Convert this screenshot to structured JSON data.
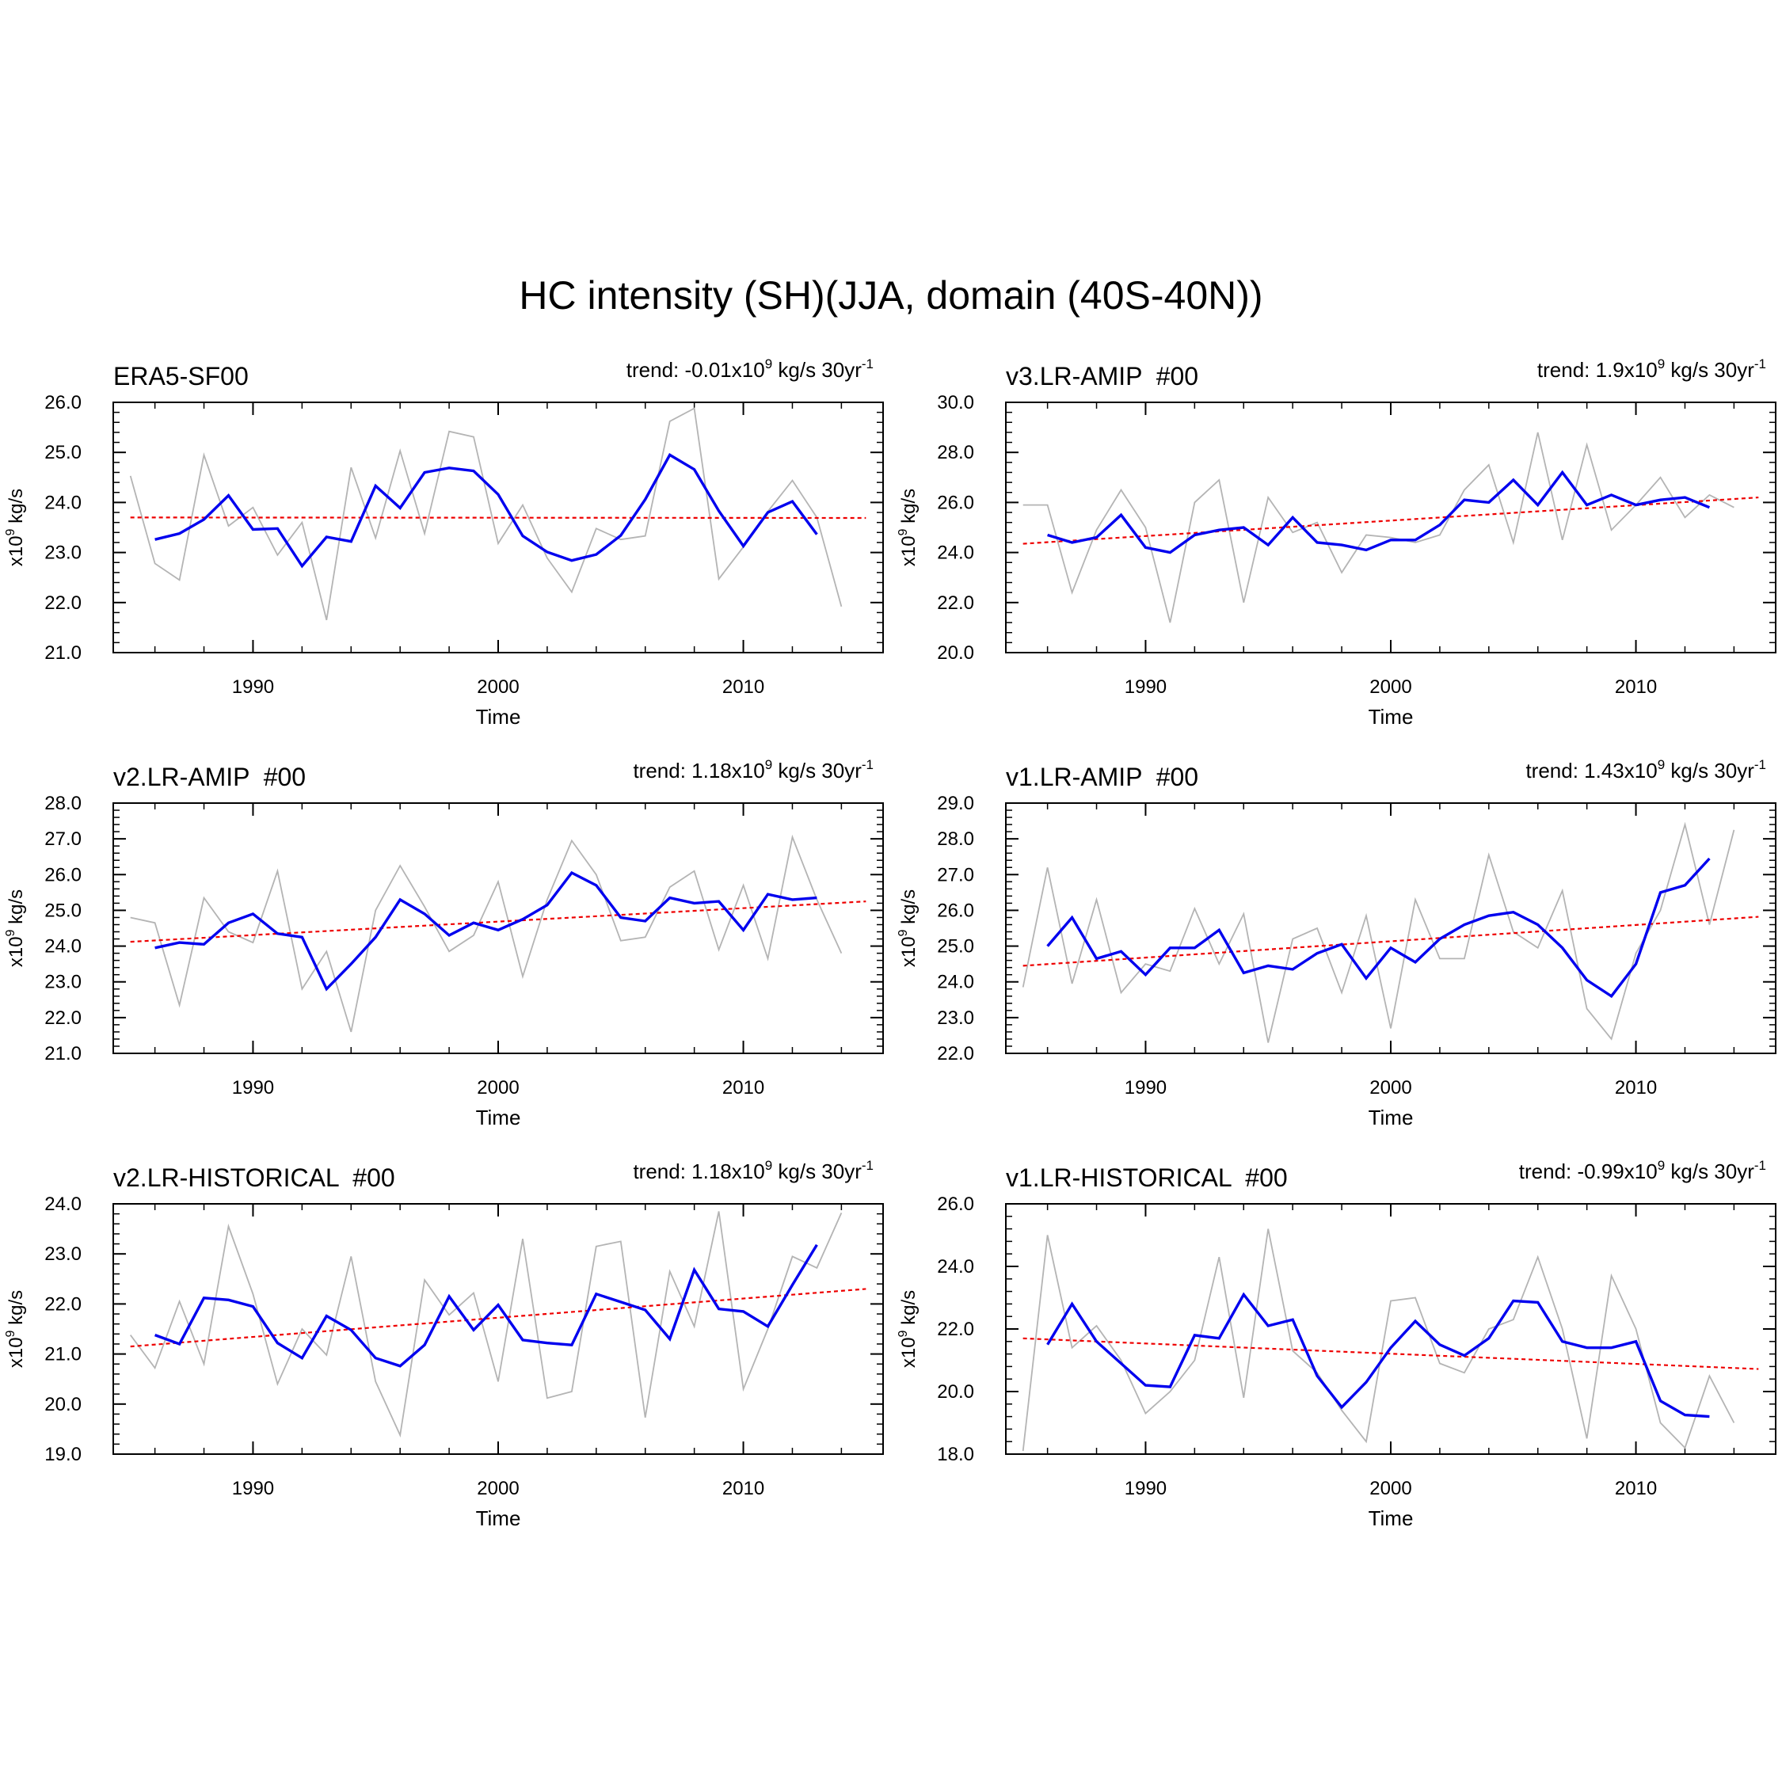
{
  "figure": {
    "title": "HC intensity (SH)(JJA, domain (40S-40N))"
  },
  "colors": {
    "raw": "#b4b4b4",
    "smooth": "#0000ee",
    "trend": "#ee0000",
    "axis": "#000000"
  },
  "chart_data": [
    {
      "type": "line",
      "name": "ERA5-SF00",
      "trend_label": {
        "prefix": "trend: ",
        "value": "-0.01x10",
        "sup1": "9",
        "mid": " kg/s 30yr",
        "sup2": "-1"
      },
      "xlabel": "Time",
      "ylabel": {
        "base": "x10",
        "sup": "9",
        "rest": " kg/s"
      },
      "xlim": [
        1984.3,
        2015.7
      ],
      "ylim": [
        21,
        26
      ],
      "yticks": [
        21,
        22,
        23,
        24,
        25,
        26
      ],
      "ytick_labels": [
        "21.0",
        "22.0",
        "23.0",
        "24.0",
        "25.0",
        "26.0"
      ],
      "xticks": [
        1990,
        2000,
        2010
      ],
      "xtick_labels": [
        "1990",
        "2000",
        "2010"
      ],
      "raw_x_start": 1985,
      "raw": [
        24.53,
        22.78,
        22.45,
        24.95,
        23.53,
        23.9,
        22.95,
        23.6,
        21.65,
        24.7,
        23.29,
        25.03,
        23.38,
        25.42,
        25.31,
        23.18,
        23.95,
        22.89,
        22.21,
        23.48,
        23.26,
        23.33,
        25.62,
        25.88,
        22.47,
        23.11,
        23.82,
        24.44,
        23.7,
        21.92
      ],
      "smooth_x_start": 1986,
      "smooth": [
        23.26,
        23.38,
        23.66,
        24.14,
        23.46,
        23.48,
        22.73,
        23.31,
        23.22,
        24.33,
        23.89,
        24.6,
        24.69,
        24.63,
        24.16,
        23.33,
        23.01,
        22.84,
        22.96,
        23.34,
        24.06,
        24.95,
        24.66,
        23.83,
        23.13,
        23.8,
        24.02,
        23.36
      ],
      "trend_line": {
        "x": [
          1985,
          2015
        ],
        "y": [
          23.7,
          23.69
        ]
      }
    },
    {
      "type": "line",
      "name": "v3.LR-AMIP  #00",
      "trend_label": {
        "prefix": "trend: ",
        "value": "1.9x10",
        "sup1": "9",
        "mid": " kg/s 30yr",
        "sup2": "-1"
      },
      "xlabel": "Time",
      "ylabel": {
        "base": "x10",
        "sup": "9",
        "rest": " kg/s"
      },
      "xlim": [
        1984.3,
        2015.7
      ],
      "ylim": [
        20,
        30
      ],
      "yticks": [
        20,
        22,
        24,
        26,
        28,
        30
      ],
      "ytick_labels": [
        "20.0",
        "22.0",
        "24.0",
        "26.0",
        "28.0",
        "30.0"
      ],
      "xticks": [
        1990,
        2000,
        2010
      ],
      "xtick_labels": [
        "1990",
        "2000",
        "2010"
      ],
      "raw_x_start": 1985,
      "raw": [
        25.9,
        25.9,
        22.4,
        24.9,
        26.5,
        25.0,
        21.2,
        26.0,
        26.9,
        22.0,
        26.2,
        24.8,
        25.2,
        23.2,
        24.7,
        24.6,
        24.4,
        24.7,
        26.5,
        27.5,
        24.4,
        28.8,
        24.5,
        28.3,
        24.9,
        25.9,
        27.0,
        25.4,
        26.3,
        25.8
      ],
      "smooth_x_start": 1986,
      "smooth": [
        24.7,
        24.4,
        24.6,
        25.5,
        24.2,
        24.0,
        24.7,
        24.9,
        25.0,
        24.3,
        25.4,
        24.4,
        24.3,
        24.1,
        24.5,
        24.5,
        25.1,
        26.1,
        26.0,
        26.9,
        25.9,
        27.2,
        25.9,
        26.3,
        25.9,
        26.1,
        26.2,
        25.8
      ],
      "trend_line": {
        "x": [
          1985,
          2015
        ],
        "y": [
          24.35,
          26.2
        ]
      }
    },
    {
      "type": "line",
      "name": "v2.LR-AMIP  #00",
      "trend_label": {
        "prefix": "trend: ",
        "value": "1.18x10",
        "sup1": "9",
        "mid": " kg/s 30yr",
        "sup2": "-1"
      },
      "xlabel": "Time",
      "ylabel": {
        "base": "x10",
        "sup": "9",
        "rest": " kg/s"
      },
      "xlim": [
        1984.3,
        2015.7
      ],
      "ylim": [
        21,
        28
      ],
      "yticks": [
        21,
        22,
        23,
        24,
        25,
        26,
        27,
        28
      ],
      "ytick_labels": [
        "21.0",
        "22.0",
        "23.0",
        "24.0",
        "25.0",
        "26.0",
        "27.0",
        "28.0"
      ],
      "xticks": [
        1990,
        2000,
        2010
      ],
      "xtick_labels": [
        "1990",
        "2000",
        "2010"
      ],
      "raw_x_start": 1985,
      "raw": [
        24.8,
        24.65,
        22.35,
        25.35,
        24.4,
        24.1,
        26.1,
        22.8,
        23.85,
        21.6,
        25.0,
        26.25,
        25.1,
        23.85,
        24.3,
        25.8,
        23.15,
        25.3,
        26.95,
        26.0,
        24.15,
        24.25,
        25.65,
        26.1,
        23.9,
        25.7,
        23.65,
        27.05,
        25.3,
        23.8
      ],
      "smooth_x_start": 1986,
      "smooth": [
        23.95,
        24.1,
        24.05,
        24.65,
        24.9,
        24.35,
        24.25,
        22.8,
        23.5,
        24.25,
        25.3,
        24.9,
        24.3,
        24.65,
        24.45,
        24.75,
        25.15,
        26.05,
        25.7,
        24.8,
        24.7,
        25.35,
        25.2,
        25.25,
        24.45,
        25.45,
        25.3,
        25.35
      ],
      "trend_line": {
        "x": [
          1985,
          2015
        ],
        "y": [
          24.12,
          25.25
        ]
      }
    },
    {
      "type": "line",
      "name": "v1.LR-AMIP  #00",
      "trend_label": {
        "prefix": "trend: ",
        "value": "1.43x10",
        "sup1": "9",
        "mid": " kg/s 30yr",
        "sup2": "-1"
      },
      "xlabel": "Time",
      "ylabel": {
        "base": "x10",
        "sup": "9",
        "rest": " kg/s"
      },
      "xlim": [
        1984.3,
        2015.7
      ],
      "ylim": [
        22,
        29
      ],
      "yticks": [
        22,
        23,
        24,
        25,
        26,
        27,
        28,
        29
      ],
      "ytick_labels": [
        "22.0",
        "23.0",
        "24.0",
        "25.0",
        "26.0",
        "27.0",
        "28.0",
        "29.0"
      ],
      "xticks": [
        1990,
        2000,
        2010
      ],
      "xtick_labels": [
        "1990",
        "2000",
        "2010"
      ],
      "raw_x_start": 1985,
      "raw": [
        23.85,
        27.2,
        23.95,
        26.3,
        23.7,
        24.5,
        24.3,
        26.05,
        24.5,
        25.9,
        22.3,
        25.2,
        25.5,
        23.7,
        25.85,
        22.7,
        26.3,
        24.65,
        24.65,
        27.55,
        25.4,
        24.95,
        26.55,
        23.25,
        22.4,
        24.8,
        26.0,
        28.4,
        25.6,
        28.25
      ],
      "smooth_x_start": 1986,
      "smooth": [
        25.0,
        25.8,
        24.65,
        24.85,
        24.2,
        24.95,
        24.95,
        25.45,
        24.25,
        24.45,
        24.35,
        24.8,
        25.05,
        24.1,
        24.95,
        24.55,
        25.2,
        25.6,
        25.85,
        25.95,
        25.6,
        24.95,
        24.05,
        23.6,
        24.5,
        26.5,
        26.7,
        27.45
      ],
      "trend_line": {
        "x": [
          1985,
          2015
        ],
        "y": [
          24.45,
          25.82
        ]
      }
    },
    {
      "type": "line",
      "name": "v2.LR-HISTORICAL  #00",
      "trend_label": {
        "prefix": "trend: ",
        "value": "1.18x10",
        "sup1": "9",
        "mid": " kg/s 30yr",
        "sup2": "-1"
      },
      "xlabel": "Time",
      "ylabel": {
        "base": "x10",
        "sup": "9",
        "rest": " kg/s"
      },
      "xlim": [
        1984.3,
        2015.7
      ],
      "ylim": [
        19,
        24
      ],
      "yticks": [
        19,
        20,
        21,
        22,
        23,
        24
      ],
      "ytick_labels": [
        "19.0",
        "20.0",
        "21.0",
        "22.0",
        "23.0",
        "24.0"
      ],
      "xticks": [
        1990,
        2000,
        2010
      ],
      "xtick_labels": [
        "1990",
        "2000",
        "2010"
      ],
      "raw_x_start": 1985,
      "raw": [
        21.38,
        20.72,
        22.05,
        20.8,
        23.55,
        22.2,
        20.4,
        21.5,
        20.98,
        22.95,
        20.45,
        19.38,
        22.48,
        21.78,
        22.22,
        20.45,
        23.3,
        20.12,
        20.25,
        23.15,
        23.25,
        19.73,
        22.65,
        21.55,
        23.85,
        20.3,
        21.5,
        22.95,
        22.72,
        23.82
      ],
      "smooth_x_start": 1986,
      "smooth": [
        21.38,
        21.2,
        22.12,
        22.08,
        21.95,
        21.22,
        20.92,
        21.76,
        21.48,
        20.92,
        20.76,
        21.18,
        22.15,
        21.48,
        21.98,
        21.28,
        21.22,
        21.18,
        22.2,
        22.04,
        21.88,
        21.3,
        22.68,
        21.9,
        21.85,
        21.55,
        22.38,
        23.18
      ],
      "trend_line": {
        "x": [
          1985,
          2015
        ],
        "y": [
          21.15,
          22.3
        ]
      }
    },
    {
      "type": "line",
      "name": "v1.LR-HISTORICAL  #00",
      "trend_label": {
        "prefix": "trend: ",
        "value": "-0.99x10",
        "sup1": "9",
        "mid": " kg/s 30yr",
        "sup2": "-1"
      },
      "xlabel": "Time",
      "ylabel": {
        "base": "x10",
        "sup": "9",
        "rest": " kg/s"
      },
      "xlim": [
        1984.3,
        2015.7
      ],
      "ylim": [
        18,
        26
      ],
      "yticks": [
        18,
        20,
        22,
        24,
        26
      ],
      "ytick_labels": [
        "18.0",
        "20.0",
        "22.0",
        "24.0",
        "26.0"
      ],
      "xticks": [
        1990,
        2000,
        2010
      ],
      "xtick_labels": [
        "1990",
        "2000",
        "2010"
      ],
      "raw_x_start": 1985,
      "raw": [
        18.1,
        25.0,
        21.4,
        22.1,
        21.0,
        19.3,
        20.0,
        21.0,
        24.3,
        19.8,
        25.2,
        21.3,
        20.6,
        19.4,
        18.4,
        22.9,
        23.0,
        20.9,
        20.6,
        22.0,
        22.3,
        24.3,
        22.0,
        18.5,
        23.7,
        22.0,
        19.0,
        18.2,
        20.5,
        19.0
      ],
      "smooth_x_start": 1986,
      "smooth": [
        21.5,
        22.8,
        21.6,
        20.9,
        20.2,
        20.15,
        21.8,
        21.7,
        23.1,
        22.1,
        22.3,
        20.5,
        19.5,
        20.3,
        21.4,
        22.25,
        21.5,
        21.15,
        21.7,
        22.9,
        22.85,
        21.6,
        21.4,
        21.4,
        21.6,
        19.7,
        19.25,
        19.2
      ],
      "trend_line": {
        "x": [
          1985,
          2015
        ],
        "y": [
          21.7,
          20.72
        ]
      }
    }
  ]
}
